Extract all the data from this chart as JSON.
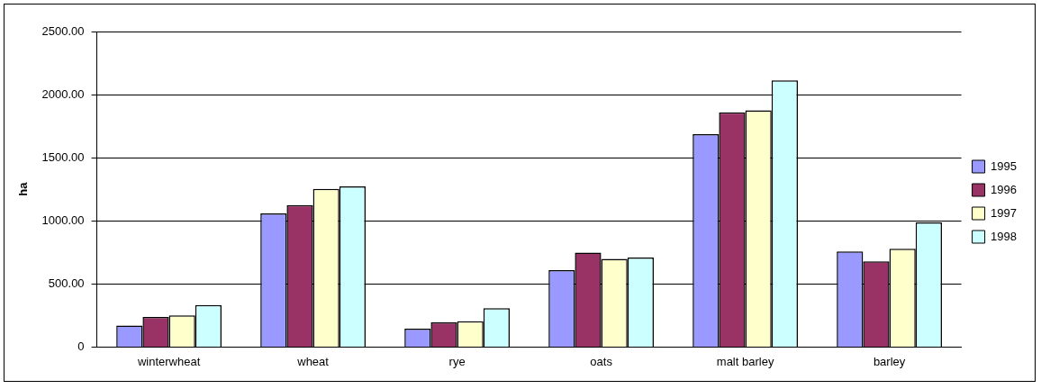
{
  "chart_data": {
    "type": "bar",
    "ylabel": "ha",
    "categories": [
      "winterwheat",
      "wheat",
      "rye",
      "oats",
      "malt barley",
      "barley"
    ],
    "series": [
      {
        "name": "1995",
        "color": "#9999ff",
        "values": [
          170,
          1058,
          145,
          609,
          1687,
          757
        ]
      },
      {
        "name": "1996",
        "color": "#993366",
        "values": [
          238,
          1125,
          195,
          749,
          1860,
          679
        ]
      },
      {
        "name": "1997",
        "color": "#ffffcc",
        "values": [
          251,
          1253,
          205,
          699,
          1875,
          779
        ]
      },
      {
        "name": "1998",
        "color": "#ccffff",
        "values": [
          333,
          1273,
          308,
          709,
          2113,
          987
        ]
      }
    ],
    "ylim": [
      0,
      2500
    ],
    "yticks": [
      0,
      {
        "value": 500,
        "label": "500.00"
      },
      {
        "value": 1000,
        "label": "1000.00"
      },
      {
        "value": 1500,
        "label": "1500.00"
      },
      {
        "value": 2000,
        "label": "2000.00"
      },
      {
        "value": 2500,
        "label": "2500.00"
      }
    ],
    "grid": "y",
    "legend": "right"
  }
}
